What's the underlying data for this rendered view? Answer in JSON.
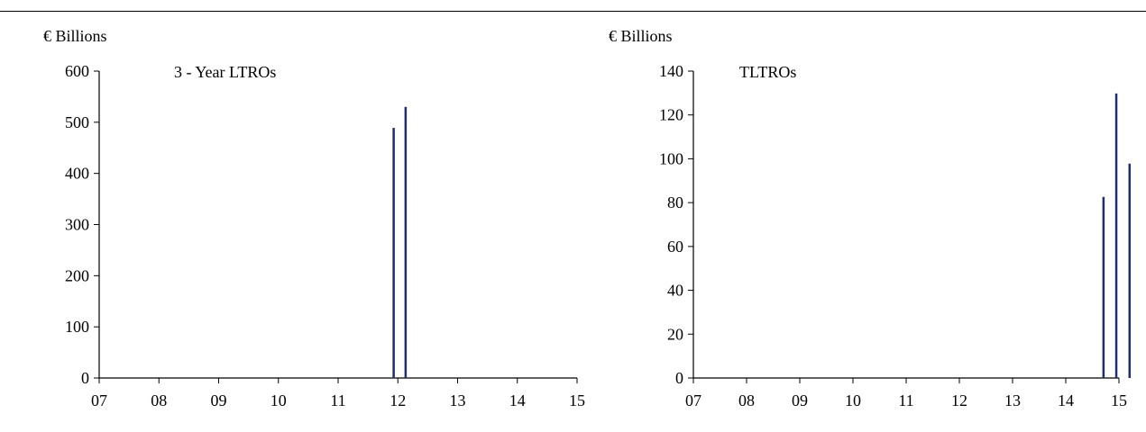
{
  "chart_data": [
    {
      "type": "bar",
      "ylabel": "€ Billions",
      "annotation": "3 - Year LTROs",
      "ylim": [
        0,
        600
      ],
      "yticks": [
        0,
        100,
        200,
        300,
        400,
        500,
        600
      ],
      "xlim": [
        7,
        15
      ],
      "xticks": [
        "07",
        "08",
        "09",
        "10",
        "11",
        "12",
        "13",
        "14",
        "15"
      ],
      "x": [
        11.93,
        12.13
      ],
      "values": [
        489,
        530
      ],
      "color": "#1f2d6b"
    },
    {
      "type": "bar",
      "ylabel": "€ Billions",
      "annotation": "TLTROs",
      "ylim": [
        0,
        140
      ],
      "yticks": [
        0,
        20,
        40,
        60,
        80,
        100,
        120,
        140
      ],
      "xlim": [
        7,
        15
      ],
      "xticks": [
        "07",
        "08",
        "09",
        "10",
        "11",
        "12",
        "13",
        "14",
        "15"
      ],
      "x": [
        14.71,
        14.95,
        15.2
      ],
      "values": [
        82.6,
        129.8,
        97.8
      ],
      "color": "#1f2d6b"
    }
  ]
}
